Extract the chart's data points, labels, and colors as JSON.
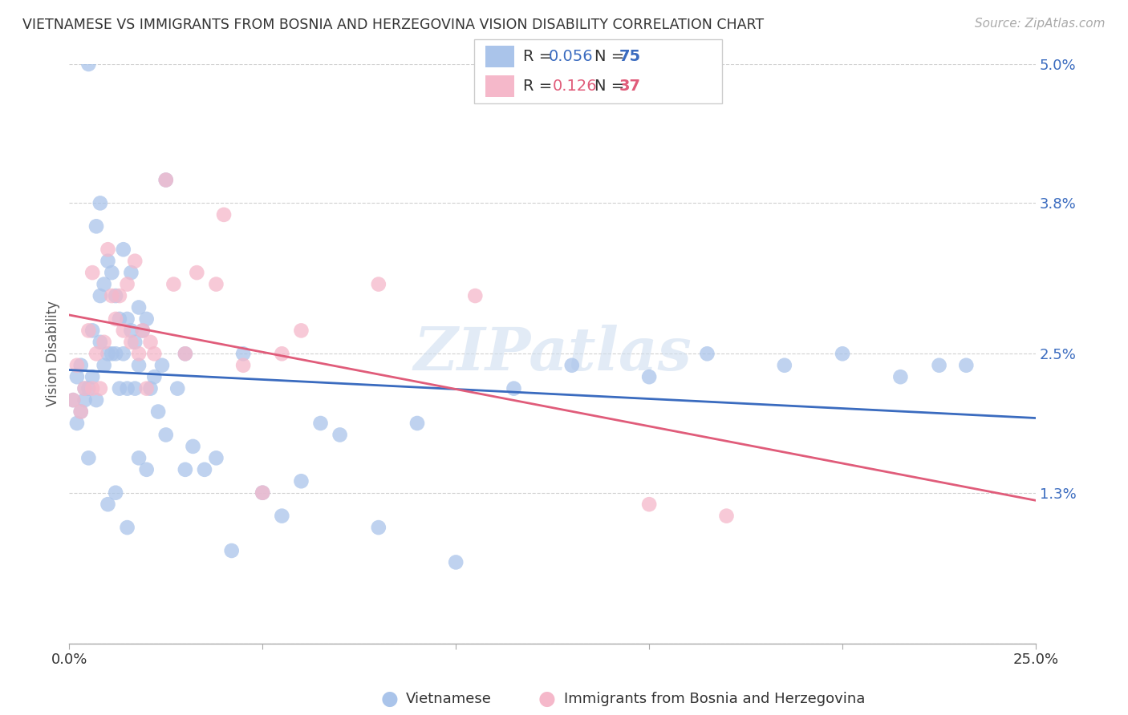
{
  "title": "VIETNAMESE VS IMMIGRANTS FROM BOSNIA AND HERZEGOVINA VISION DISABILITY CORRELATION CHART",
  "source": "Source: ZipAtlas.com",
  "ylabel": "Vision Disability",
  "xlim": [
    0.0,
    0.25
  ],
  "ylim": [
    0.0,
    0.05
  ],
  "xtick_vals": [
    0.0,
    0.05,
    0.1,
    0.15,
    0.2,
    0.25
  ],
  "xtick_labels": [
    "0.0%",
    "",
    "",
    "",
    "",
    "25.0%"
  ],
  "ytick_vals": [
    0.0,
    0.013,
    0.025,
    0.038,
    0.05
  ],
  "ytick_labels": [
    "",
    "1.3%",
    "2.5%",
    "3.8%",
    "5.0%"
  ],
  "legend1_label": "Vietnamese",
  "legend2_label": "Immigrants from Bosnia and Herzegovina",
  "R1": "0.056",
  "N1": "75",
  "R2": "0.126",
  "N2": "37",
  "color1": "#aac4ea",
  "color2": "#f5b8ca",
  "line_color1": "#3a6bbf",
  "line_color2": "#e05c7a",
  "viet_x": [
    0.001,
    0.002,
    0.002,
    0.003,
    0.003,
    0.004,
    0.004,
    0.005,
    0.005,
    0.006,
    0.006,
    0.007,
    0.007,
    0.008,
    0.008,
    0.009,
    0.009,
    0.01,
    0.01,
    0.011,
    0.011,
    0.012,
    0.012,
    0.013,
    0.013,
    0.014,
    0.014,
    0.015,
    0.015,
    0.016,
    0.016,
    0.017,
    0.017,
    0.018,
    0.018,
    0.019,
    0.02,
    0.021,
    0.022,
    0.023,
    0.024,
    0.025,
    0.028,
    0.03,
    0.032,
    0.035,
    0.038,
    0.042,
    0.045,
    0.05,
    0.055,
    0.06,
    0.065,
    0.07,
    0.08,
    0.09,
    0.1,
    0.115,
    0.13,
    0.15,
    0.165,
    0.185,
    0.2,
    0.215,
    0.225,
    0.232,
    0.005,
    0.008,
    0.01,
    0.012,
    0.015,
    0.018,
    0.02,
    0.025,
    0.03
  ],
  "viet_y": [
    0.021,
    0.019,
    0.023,
    0.02,
    0.024,
    0.021,
    0.022,
    0.05,
    0.022,
    0.023,
    0.027,
    0.021,
    0.036,
    0.026,
    0.03,
    0.031,
    0.024,
    0.033,
    0.025,
    0.032,
    0.025,
    0.03,
    0.025,
    0.028,
    0.022,
    0.034,
    0.025,
    0.028,
    0.022,
    0.032,
    0.027,
    0.026,
    0.022,
    0.029,
    0.024,
    0.027,
    0.028,
    0.022,
    0.023,
    0.02,
    0.024,
    0.04,
    0.022,
    0.025,
    0.017,
    0.015,
    0.016,
    0.008,
    0.025,
    0.013,
    0.011,
    0.014,
    0.019,
    0.018,
    0.01,
    0.019,
    0.007,
    0.022,
    0.024,
    0.023,
    0.025,
    0.024,
    0.025,
    0.023,
    0.024,
    0.024,
    0.016,
    0.038,
    0.012,
    0.013,
    0.01,
    0.016,
    0.015,
    0.018,
    0.015
  ],
  "bosnia_x": [
    0.001,
    0.002,
    0.003,
    0.004,
    0.005,
    0.006,
    0.006,
    0.007,
    0.008,
    0.009,
    0.01,
    0.011,
    0.012,
    0.013,
    0.014,
    0.015,
    0.016,
    0.017,
    0.018,
    0.019,
    0.02,
    0.021,
    0.022,
    0.025,
    0.027,
    0.03,
    0.033,
    0.038,
    0.04,
    0.045,
    0.05,
    0.055,
    0.06,
    0.08,
    0.15,
    0.17,
    0.105
  ],
  "bosnia_y": [
    0.021,
    0.024,
    0.02,
    0.022,
    0.027,
    0.022,
    0.032,
    0.025,
    0.022,
    0.026,
    0.034,
    0.03,
    0.028,
    0.03,
    0.027,
    0.031,
    0.026,
    0.033,
    0.025,
    0.027,
    0.022,
    0.026,
    0.025,
    0.04,
    0.031,
    0.025,
    0.032,
    0.031,
    0.037,
    0.024,
    0.013,
    0.025,
    0.027,
    0.031,
    0.012,
    0.011,
    0.03
  ]
}
